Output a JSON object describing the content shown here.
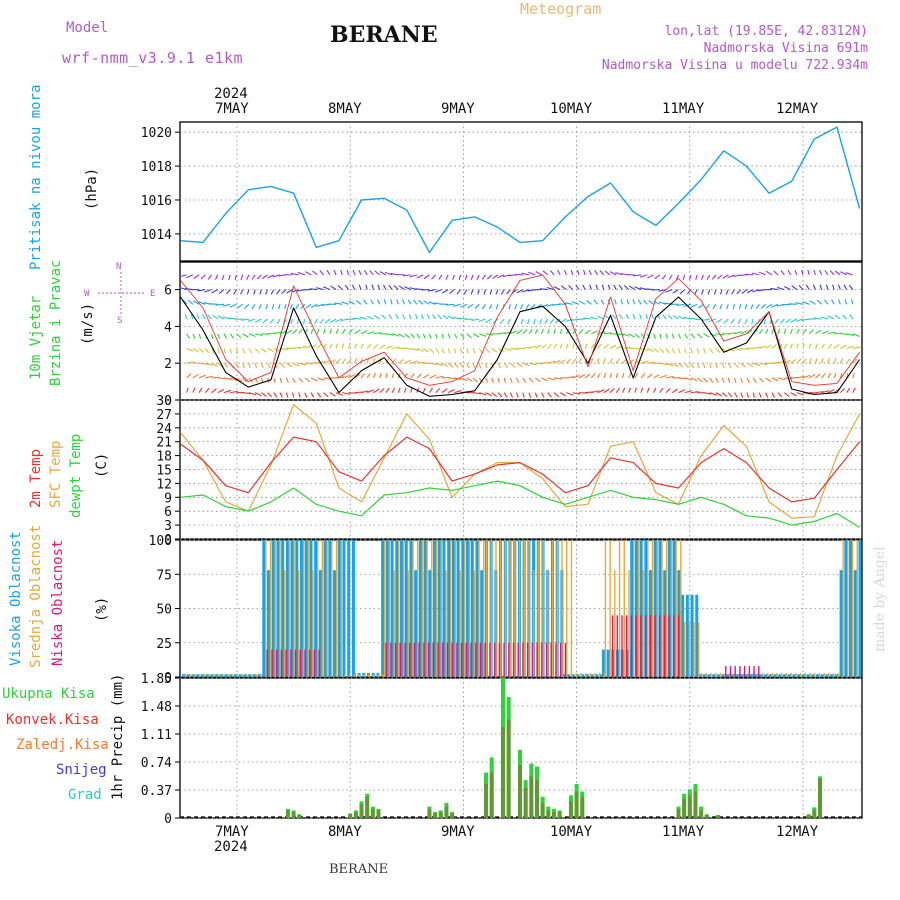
{
  "header": {
    "model_label": "Model",
    "model_name": "wrf-nmm_v3.9.1  e1km",
    "station": "BERANE",
    "meteogram_label": "Meteogram",
    "lonlat": "lon,lat (19.85E, 42.8312N)",
    "elevation": "Nadmorska Visina 691m",
    "model_elevation": "Nadmorska Visina u modelu 722.934m"
  },
  "footer_station": "BERANE",
  "watermark": "made by Angel",
  "colors": {
    "pressure": "#1aa2e6",
    "temp2m": "#e6332e",
    "sfc": "#e6a83c",
    "dewpt": "#2ed23a",
    "high_cloud": "#1aa2e6",
    "mid_cloud": "#e6a83c",
    "low_cloud": "#d9187a",
    "total_precip": "#2ed23a",
    "conv_precip": "#e6332e",
    "strat_precip": "#f07a30",
    "snow": "#3c3cd8",
    "hail": "#2ec9c9",
    "wind_speed": "#000000",
    "gust": "#e6332e"
  },
  "chart_data": [
    {
      "type": "line",
      "panel": "pressure",
      "ylabel": "Pritisak na nivou mora",
      "unit": "(hPa)",
      "ylim": [
        1012.4,
        1020.6
      ],
      "yticks": [
        "1014",
        "1016",
        "1018",
        "1020"
      ],
      "x_days": [
        0.0,
        0.2,
        0.4,
        0.6,
        0.8,
        1.0,
        1.2,
        1.4,
        1.6,
        1.8,
        2.0,
        2.2,
        2.4,
        2.6,
        2.8,
        3.0,
        3.2,
        3.4,
        3.6,
        3.8,
        4.0,
        4.2,
        4.4,
        4.6,
        4.8,
        5.0,
        5.2,
        5.4,
        5.6,
        5.8,
        6.0
      ],
      "values": [
        1013.6,
        1013.5,
        1015.2,
        1016.6,
        1016.8,
        1016.4,
        1013.2,
        1013.6,
        1016.0,
        1016.1,
        1015.4,
        1012.9,
        1014.8,
        1015.0,
        1014.4,
        1013.5,
        1013.6,
        1015.0,
        1016.2,
        1017.0,
        1015.3,
        1014.5,
        1015.8,
        1017.2,
        1018.9,
        1018.0,
        1016.4,
        1017.1,
        1019.6,
        1020.3,
        1015.5
      ]
    },
    {
      "type": "line",
      "panel": "wind",
      "ylabel": [
        "10m Vjetar",
        "Brzina i Pravac"
      ],
      "unit": "(m/s)",
      "ylim": [
        0,
        7.5
      ],
      "yticks": [
        "0",
        "2",
        "4",
        "6"
      ],
      "compass": {
        "n": "N",
        "s": "S",
        "e": "E",
        "w": "W"
      },
      "x_days": [
        0.0,
        0.2,
        0.4,
        0.6,
        0.8,
        1.0,
        1.2,
        1.4,
        1.6,
        1.8,
        2.0,
        2.2,
        2.4,
        2.6,
        2.8,
        3.0,
        3.2,
        3.4,
        3.6,
        3.8,
        4.0,
        4.2,
        4.4,
        4.6,
        4.8,
        5.0,
        5.2,
        5.4,
        5.6,
        5.8,
        6.0
      ],
      "series": [
        {
          "name": "speed",
          "values": [
            5.6,
            3.8,
            1.5,
            0.7,
            1.1,
            5.0,
            2.4,
            0.4,
            1.6,
            2.3,
            0.8,
            0.2,
            0.3,
            0.5,
            2.2,
            4.8,
            5.1,
            4.0,
            2.0,
            4.6,
            1.2,
            4.5,
            5.6,
            4.4,
            2.6,
            3.1,
            4.8,
            0.6,
            0.3,
            0.4,
            2.2
          ]
        },
        {
          "name": "gust",
          "values": [
            6.5,
            5.0,
            2.2,
            1.0,
            1.5,
            6.2,
            3.6,
            1.2,
            2.1,
            2.6,
            1.2,
            0.8,
            1.0,
            1.6,
            4.5,
            6.5,
            6.8,
            5.2,
            1.8,
            5.6,
            1.6,
            5.5,
            6.6,
            5.4,
            3.2,
            3.6,
            4.8,
            1.0,
            0.8,
            0.9,
            2.6
          ]
        }
      ]
    },
    {
      "type": "line",
      "panel": "temperature",
      "ylabel": [
        "2m Temp",
        "SFC Temp",
        "dewpt Temp"
      ],
      "unit": "(C)",
      "ylim": [
        0,
        30
      ],
      "yticks": [
        "0",
        "3",
        "6",
        "9",
        "12",
        "15",
        "18",
        "21",
        "24",
        "27",
        "30"
      ],
      "x_days": [
        0.0,
        0.2,
        0.4,
        0.6,
        0.8,
        1.0,
        1.2,
        1.4,
        1.6,
        1.8,
        2.0,
        2.2,
        2.4,
        2.6,
        2.8,
        3.0,
        3.2,
        3.4,
        3.6,
        3.8,
        4.0,
        4.2,
        4.4,
        4.6,
        4.8,
        5.0,
        5.2,
        5.4,
        5.6,
        5.8,
        6.0
      ],
      "series": [
        {
          "name": "2m Temp",
          "values": [
            20.5,
            17.0,
            11.5,
            10.0,
            16.5,
            22.0,
            21.0,
            14.5,
            12.5,
            18.0,
            22.0,
            19.5,
            12.5,
            14.0,
            16.0,
            16.5,
            14.0,
            10.0,
            11.5,
            17.5,
            16.5,
            12.0,
            11.0,
            16.5,
            19.5,
            16.5,
            11.0,
            8.0,
            8.8,
            15.0,
            21.0
          ]
        },
        {
          "name": "SFC Temp",
          "values": [
            23.0,
            17.0,
            8.0,
            6.0,
            16.0,
            29.0,
            25.0,
            11.0,
            8.0,
            17.5,
            27.0,
            21.5,
            9.0,
            14.0,
            16.5,
            16.5,
            13.0,
            7.0,
            7.5,
            20.0,
            21.0,
            10.0,
            7.5,
            18.0,
            24.5,
            20.0,
            8.0,
            4.5,
            4.8,
            18.0,
            27.0
          ]
        },
        {
          "name": "dewpt Temp",
          "values": [
            9.0,
            9.5,
            7.0,
            6.0,
            8.0,
            11.0,
            7.5,
            6.0,
            5.0,
            9.5,
            10.0,
            11.0,
            10.5,
            11.5,
            12.5,
            11.5,
            9.0,
            7.5,
            9.0,
            10.5,
            9.0,
            8.5,
            7.5,
            9.0,
            7.5,
            5.0,
            4.5,
            3.0,
            3.8,
            5.5,
            2.5
          ]
        }
      ]
    },
    {
      "type": "bar",
      "panel": "clouds",
      "ylabel": [
        "Visoka Oblacnost",
        "Srednja Oblacnost",
        "Niska Oblacnost"
      ],
      "unit": "(%)",
      "ylim": [
        0,
        100
      ],
      "yticks": [
        "0",
        "25",
        "50",
        "75",
        "100"
      ],
      "hour_step": 1,
      "series": [
        {
          "name": "high",
          "segments": [
            [
              0.0,
              0.75,
              2
            ],
            [
              0.75,
              1.25,
              100
            ],
            [
              1.25,
              1.55,
              90
            ],
            [
              1.55,
              1.8,
              3
            ],
            [
              1.8,
              3.4,
              100
            ],
            [
              3.4,
              3.75,
              2
            ],
            [
              3.75,
              4.0,
              20
            ],
            [
              4.0,
              4.45,
              100
            ],
            [
              4.45,
              4.6,
              60
            ],
            [
              4.6,
              5.85,
              2
            ],
            [
              5.85,
              6.1,
              100
            ]
          ]
        },
        {
          "name": "mid",
          "segments": [
            [
              0.0,
              0.75,
              2
            ],
            [
              0.75,
              1.45,
              100
            ],
            [
              1.45,
              1.8,
              2
            ],
            [
              1.8,
              2.7,
              100
            ],
            [
              2.7,
              3.45,
              100
            ],
            [
              3.45,
              3.75,
              3
            ],
            [
              3.75,
              4.45,
              100
            ],
            [
              4.45,
              4.6,
              40
            ],
            [
              4.6,
              5.85,
              3
            ],
            [
              5.85,
              6.1,
              100
            ]
          ]
        },
        {
          "name": "low",
          "segments": [
            [
              0.0,
              0.75,
              0
            ],
            [
              0.75,
              1.25,
              20
            ],
            [
              1.25,
              1.8,
              0
            ],
            [
              1.8,
              3.4,
              25
            ],
            [
              3.4,
              3.8,
              0
            ],
            [
              3.8,
              4.4,
              45
            ],
            [
              4.4,
              4.8,
              0
            ],
            [
              4.8,
              5.1,
              8
            ],
            [
              5.1,
              6.1,
              0
            ]
          ]
        }
      ]
    },
    {
      "type": "bar",
      "panel": "precip",
      "legend": [
        "Ukupna  Kisa",
        "Konvek.Kisa",
        "Zaledj.Kisa",
        "Snijeg",
        "Grad"
      ],
      "ylabel": "1hr Precip (mm)",
      "ylim": [
        0,
        1.85
      ],
      "yticks": [
        "0",
        "0.37",
        "0.74",
        "1.11",
        "1.48",
        "1.85"
      ],
      "x_days": [
        0.95,
        1.0,
        1.05,
        1.5,
        1.55,
        1.6,
        1.65,
        1.7,
        1.75,
        2.2,
        2.25,
        2.3,
        2.35,
        2.4,
        2.7,
        2.75,
        2.85,
        2.9,
        3.0,
        3.05,
        3.1,
        3.15,
        3.2,
        3.25,
        3.3,
        3.35,
        3.45,
        3.5,
        3.55,
        4.4,
        4.45,
        4.5,
        4.55,
        4.6,
        4.65,
        4.75,
        5.55,
        5.6,
        5.65
      ],
      "series": [
        {
          "name": "Ukupna  Kisa",
          "values": [
            0.12,
            0.1,
            0.05,
            0.06,
            0.1,
            0.22,
            0.32,
            0.15,
            0.12,
            0.15,
            0.08,
            0.1,
            0.2,
            0.08,
            0.6,
            0.8,
            1.86,
            1.6,
            0.9,
            0.5,
            0.72,
            0.68,
            0.28,
            0.15,
            0.12,
            0.1,
            0.3,
            0.45,
            0.35,
            0.15,
            0.32,
            0.38,
            0.45,
            0.15,
            0.05,
            0.04,
            0.05,
            0.14,
            0.55
          ]
        },
        {
          "name": "Konvek.Kisa",
          "values": [
            0.1,
            0.08,
            0.04,
            0.05,
            0.08,
            0.18,
            0.28,
            0.12,
            0.1,
            0.12,
            0.06,
            0.08,
            0.15,
            0.06,
            0.45,
            0.6,
            1.2,
            1.3,
            0.7,
            0.4,
            0.55,
            0.5,
            0.2,
            0.1,
            0.08,
            0.08,
            0.22,
            0.35,
            0.28,
            0.12,
            0.25,
            0.3,
            0.35,
            0.1,
            0.04,
            0.03,
            0.04,
            0.1,
            0.52
          ]
        }
      ]
    }
  ],
  "x_axis": {
    "top_labels": [
      "7MAY",
      "8MAY",
      "9MAY",
      "10MAY",
      "11MAY",
      "12MAY"
    ],
    "bottom_labels": [
      "7MAY",
      "8MAY",
      "9MAY",
      "10MAY",
      "11MAY",
      "12MAY"
    ],
    "year": "2024"
  }
}
